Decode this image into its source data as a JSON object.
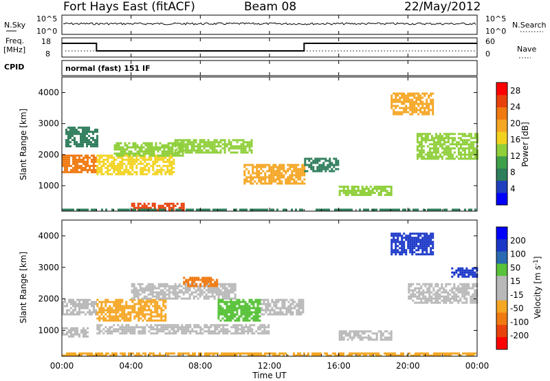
{
  "header": {
    "radar": "Fort Hays East (fitACF)",
    "beam": "Beam 08",
    "date": "22/May/2012"
  },
  "top_panels": {
    "nsky_label": "N.Sky",
    "nsearch_label": "N.Search",
    "freq_label_line1": "Freq.",
    "freq_label_line2": "[MHz]",
    "nave_label": "Nave",
    "cpid_label": "CPID",
    "cpid_text": "normal (fast) 151 IF",
    "noise_ticks_left": [
      "10^5",
      "10^0"
    ],
    "noise_ticks_right": [
      "10^5",
      "10^0"
    ],
    "freq_ticks": [
      "18",
      "8"
    ],
    "nave_ticks": [
      "60",
      "0"
    ]
  },
  "colors": {
    "power_scale": [
      "#0000ff",
      "#1f3fbf",
      "#2e7d5b",
      "#3fa04a",
      "#8fcf3a",
      "#f2d21e",
      "#f5a623",
      "#f07a12",
      "#e8420c",
      "#ff0000"
    ],
    "velocity_scale": [
      "#0000ff",
      "#1a37c8",
      "#2a6ab0",
      "#58c23a",
      "#b8b8b8",
      "#b8b8b8",
      "#f5a623",
      "#f07a12",
      "#e8420c",
      "#ff0000"
    ],
    "ground_scatter": "#b8b8b8"
  },
  "chart_data": [
    {
      "type": "heatmap",
      "name": "power",
      "xlabel": "",
      "ylabel": "Slant Range [km]",
      "x_ticks": [
        "00:00",
        "04:00",
        "08:00",
        "12:00",
        "16:00",
        "20:00",
        "00:00"
      ],
      "xlim_hours": [
        0,
        24
      ],
      "ylim_km": [
        180,
        4500
      ],
      "y_ticks": [
        1000,
        2000,
        3000,
        4000
      ],
      "colorbar_label": "Power [dB]",
      "colorbar_ticks": [
        4,
        8,
        12,
        16,
        20,
        24,
        28
      ],
      "colorbar_range": [
        0,
        30
      ],
      "bands": [
        {
          "t0": 0.0,
          "t1": 2.0,
          "r0": 1450,
          "r1": 2000,
          "level": 22
        },
        {
          "t0": 0.2,
          "t1": 2.0,
          "r0": 2300,
          "r1": 2900,
          "level": 8
        },
        {
          "t0": 2.0,
          "t1": 6.5,
          "r0": 1400,
          "r1": 2000,
          "level": 18
        },
        {
          "t0": 3.0,
          "t1": 7.0,
          "r0": 2000,
          "r1": 2400,
          "level": 12
        },
        {
          "t0": 6.5,
          "t1": 11.0,
          "r0": 2100,
          "r1": 2500,
          "level": 14
        },
        {
          "t0": 10.5,
          "t1": 14.0,
          "r0": 1100,
          "r1": 1700,
          "level": 20
        },
        {
          "t0": 4.0,
          "t1": 7.0,
          "r0": 250,
          "r1": 450,
          "level": 26
        },
        {
          "t0": 14.0,
          "t1": 16.0,
          "r0": 1500,
          "r1": 1900,
          "level": 6
        },
        {
          "t0": 16.0,
          "t1": 19.0,
          "r0": 700,
          "r1": 1000,
          "level": 14
        },
        {
          "t0": 19.0,
          "t1": 21.5,
          "r0": 3300,
          "r1": 4000,
          "level": 20
        },
        {
          "t0": 20.5,
          "t1": 24.0,
          "r0": 1900,
          "r1": 2700,
          "level": 12
        },
        {
          "t0": 0.0,
          "t1": 24.0,
          "r0": 200,
          "r1": 260,
          "level": 5
        }
      ]
    },
    {
      "type": "heatmap",
      "name": "velocity",
      "xlabel": "Time UT",
      "ylabel": "Slant Range [km]",
      "x_ticks": [
        "00:00",
        "04:00",
        "08:00",
        "12:00",
        "16:00",
        "20:00",
        "00:00"
      ],
      "xlim_hours": [
        0,
        24
      ],
      "ylim_km": [
        180,
        4500
      ],
      "y_ticks": [
        1000,
        2000,
        3000,
        4000
      ],
      "colorbar_label": "Velocity [m s^-1]",
      "colorbar_ticks": [
        "200",
        "100",
        "50",
        "15",
        "-15",
        "-50",
        "-100",
        "-200"
      ],
      "colorbar_range": [
        -250,
        250
      ],
      "bands": [
        {
          "t0": 0.0,
          "t1": 2.0,
          "r0": 1500,
          "r1": 2000,
          "level": 0,
          "gs": true
        },
        {
          "t0": 0.0,
          "t1": 1.5,
          "r0": 800,
          "r1": 1100,
          "level": 0,
          "gs": true
        },
        {
          "t0": 2.0,
          "t1": 6.0,
          "r0": 1300,
          "r1": 2000,
          "level": -60
        },
        {
          "t0": 4.0,
          "t1": 10.0,
          "r0": 2000,
          "r1": 2500,
          "level": 0,
          "gs": true
        },
        {
          "t0": 7.0,
          "t1": 9.0,
          "r0": 2400,
          "r1": 2700,
          "level": -150
        },
        {
          "t0": 9.0,
          "t1": 11.5,
          "r0": 1300,
          "r1": 2000,
          "level": 60
        },
        {
          "t0": 11.5,
          "t1": 14.0,
          "r0": 1500,
          "r1": 2000,
          "level": 0,
          "gs": true
        },
        {
          "t0": 2.0,
          "t1": 12.0,
          "r0": 900,
          "r1": 1200,
          "level": 0,
          "gs": true
        },
        {
          "t0": 16.0,
          "t1": 19.0,
          "r0": 700,
          "r1": 1000,
          "level": 0,
          "gs": true
        },
        {
          "t0": 19.0,
          "t1": 21.5,
          "r0": 3400,
          "r1": 4100,
          "level": 220
        },
        {
          "t0": 22.5,
          "t1": 24.0,
          "r0": 2700,
          "r1": 3000,
          "level": 200
        },
        {
          "t0": 20.0,
          "t1": 24.0,
          "r0": 1900,
          "r1": 2500,
          "level": 0,
          "gs": true
        },
        {
          "t0": 0.0,
          "t1": 24.0,
          "r0": 200,
          "r1": 300,
          "level": -70
        }
      ]
    }
  ]
}
